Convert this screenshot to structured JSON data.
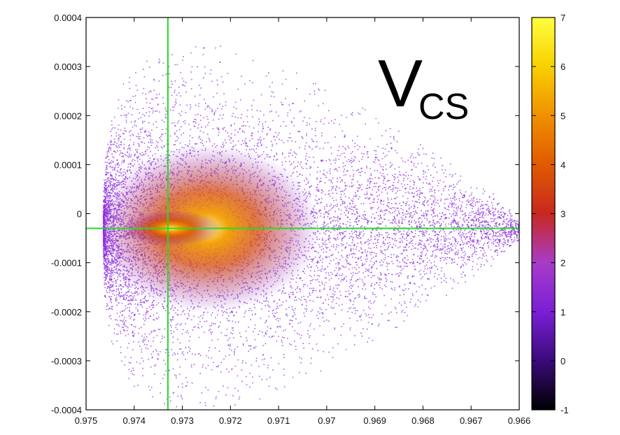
{
  "chart_data": {
    "type": "heatmap",
    "subtype": "scatter-density",
    "annotation": {
      "main": "V",
      "subscript": "CS"
    },
    "x_axis": {
      "range": [
        0.975,
        0.966
      ],
      "reversed": true,
      "ticks": [
        0.975,
        0.974,
        0.973,
        0.972,
        0.971,
        0.97,
        0.969,
        0.968,
        0.967,
        0.966
      ],
      "tick_labels": [
        "0.975",
        "0.974",
        "0.973",
        "0.972",
        "0.971",
        "0.97",
        "0.969",
        "0.968",
        "0.967",
        "0.966"
      ]
    },
    "y_axis": {
      "range": [
        -0.0004,
        0.0004
      ],
      "ticks": [
        -0.0004,
        -0.0003,
        -0.0002,
        -0.0001,
        0,
        0.0001,
        0.0002,
        0.0003,
        0.0004
      ],
      "tick_labels": [
        "-0.0004",
        "-0.0003",
        "-0.0002",
        "-0.0001",
        "0",
        "0.0001",
        "0.0002",
        "0.0003",
        "0.0004"
      ]
    },
    "colorbar": {
      "range": [
        -1,
        7
      ],
      "ticks": [
        -1,
        0,
        1,
        2,
        3,
        4,
        5,
        6,
        7
      ],
      "tick_labels": [
        "-1",
        "0",
        "1",
        "2",
        "3",
        "4",
        "5",
        "6",
        "7"
      ],
      "colormap": [
        "#000000",
        "#3a0a7a",
        "#7a1fd6",
        "#a83cc8",
        "#c8281f",
        "#e05a00",
        "#f09000",
        "#f8d000",
        "#ffff40"
      ]
    },
    "reference_lines": [
      {
        "orientation": "vertical",
        "x": 0.9733,
        "color": "#22dd22"
      },
      {
        "orientation": "horizontal",
        "y": -3e-05,
        "color": "#22dd22"
      }
    ],
    "distribution": {
      "left_edge_x": 0.97465,
      "tip_x": 0.966,
      "peak_x": 0.9733,
      "peak_y": -3e-05,
      "max_half_width_y": 0.00036,
      "point_color": "#8b2be2"
    },
    "grid": false,
    "legend": "none"
  }
}
